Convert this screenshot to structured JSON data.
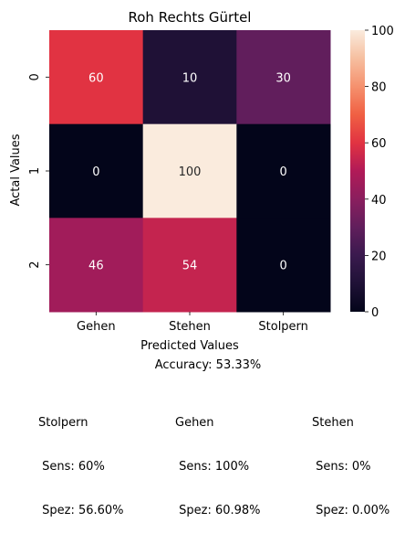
{
  "chart_data": {
    "type": "heatmap",
    "title": "Roh  Rechts Gürtel",
    "xlabel": "Predicted Values",
    "ylabel": "Actal Values",
    "x_categories": [
      "Gehen",
      "Stehen",
      "Stolpern"
    ],
    "y_categories": [
      "0",
      "1",
      "2"
    ],
    "values": [
      [
        60,
        10,
        30
      ],
      [
        0,
        100,
        0
      ],
      [
        46,
        54,
        0
      ]
    ],
    "colorbar": {
      "min": 0,
      "max": 100,
      "ticks": [
        "0",
        "20",
        "40",
        "60",
        "80",
        "100"
      ]
    },
    "colormap": "rocket"
  },
  "footer": {
    "accuracy": "Accuracy: 53.33%",
    "stats": [
      {
        "name": "Stolpern",
        "sens": " Sens: 60%",
        "spez": " Spez: 56.60%"
      },
      {
        "name": "Gehen",
        "sens": " Sens: 100%",
        "spez": " Spez: 60.98%"
      },
      {
        "name": "Stehen",
        "sens": " Sens: 0%",
        "spez": " Spez: 0.00%"
      }
    ]
  }
}
